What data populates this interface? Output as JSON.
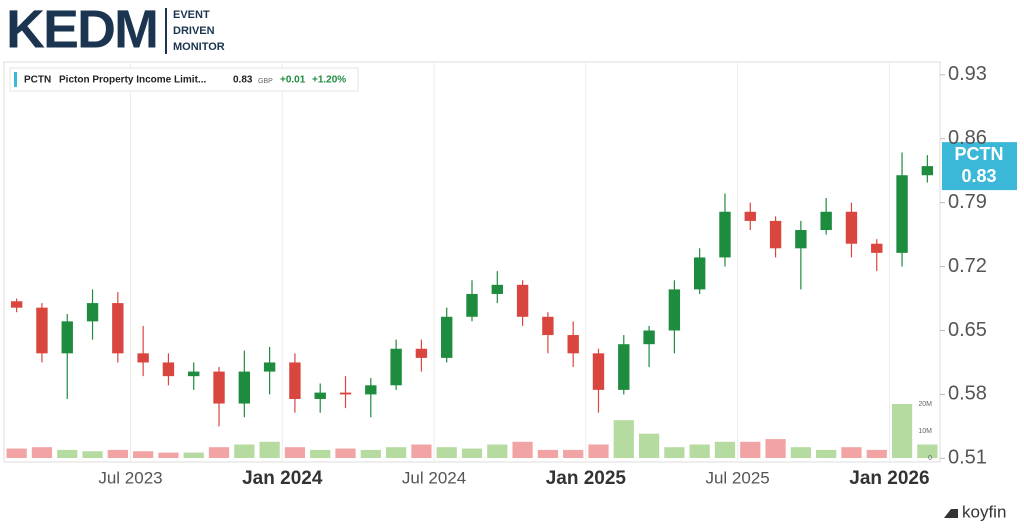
{
  "header": {
    "logo": "KEDM",
    "tagline": [
      "EVENT",
      "DRIVEN",
      "MONITOR"
    ]
  },
  "footer": {
    "brand": "koyfin"
  },
  "chart_data": {
    "type": "candlestick",
    "ticker": "PCTN",
    "name": "Picton Property Income Limit...",
    "price": 0.83,
    "currency": "GBP",
    "change": "+0.01",
    "change_pct": "+1.20%",
    "x": [
      "2023-02",
      "2023-03",
      "2023-04",
      "2023-05",
      "2023-06",
      "2023-07",
      "2023-08",
      "2023-09",
      "2023-10",
      "2023-11",
      "2023-12",
      "2024-01",
      "2024-02",
      "2024-03",
      "2024-04",
      "2024-05",
      "2024-06",
      "2024-07",
      "2024-08",
      "2024-09",
      "2024-10",
      "2024-11",
      "2024-12",
      "2025-01",
      "2025-02",
      "2025-03",
      "2025-04",
      "2025-05",
      "2025-06",
      "2025-07",
      "2025-08",
      "2025-09",
      "2025-10",
      "2025-11",
      "2025-12",
      "2026-01",
      "2026-02"
    ],
    "open": [
      0.682,
      0.675,
      0.625,
      0.66,
      0.68,
      0.625,
      0.615,
      0.6,
      0.605,
      0.57,
      0.605,
      0.615,
      0.575,
      0.582,
      0.58,
      0.59,
      0.63,
      0.62,
      0.665,
      0.69,
      0.7,
      0.665,
      0.645,
      0.625,
      0.585,
      0.635,
      0.65,
      0.695,
      0.73,
      0.78,
      0.77,
      0.74,
      0.76,
      0.78,
      0.745,
      0.735,
      0.82
    ],
    "high": [
      0.685,
      0.68,
      0.668,
      0.695,
      0.692,
      0.655,
      0.625,
      0.615,
      0.61,
      0.628,
      0.632,
      0.625,
      0.592,
      0.6,
      0.598,
      0.64,
      0.64,
      0.675,
      0.705,
      0.715,
      0.705,
      0.67,
      0.66,
      0.63,
      0.645,
      0.655,
      0.705,
      0.74,
      0.8,
      0.79,
      0.775,
      0.77,
      0.795,
      0.79,
      0.75,
      0.845,
      0.842
    ],
    "low": [
      0.67,
      0.615,
      0.575,
      0.64,
      0.615,
      0.6,
      0.59,
      0.585,
      0.545,
      0.555,
      0.58,
      0.56,
      0.56,
      0.565,
      0.555,
      0.585,
      0.605,
      0.615,
      0.66,
      0.68,
      0.655,
      0.625,
      0.61,
      0.56,
      0.58,
      0.61,
      0.625,
      0.69,
      0.72,
      0.76,
      0.73,
      0.695,
      0.755,
      0.73,
      0.715,
      0.72,
      0.812
    ],
    "close": [
      0.675,
      0.625,
      0.66,
      0.68,
      0.625,
      0.615,
      0.6,
      0.605,
      0.57,
      0.605,
      0.615,
      0.575,
      0.582,
      0.58,
      0.59,
      0.63,
      0.62,
      0.665,
      0.69,
      0.7,
      0.665,
      0.645,
      0.625,
      0.585,
      0.635,
      0.65,
      0.695,
      0.73,
      0.78,
      0.77,
      0.74,
      0.76,
      0.78,
      0.745,
      0.735,
      0.82,
      0.83
    ],
    "volume": [
      3500000,
      4000000,
      3000000,
      2500000,
      3000000,
      2500000,
      2000000,
      2000000,
      4000000,
      5000000,
      6000000,
      4000000,
      3000000,
      3500000,
      3000000,
      4000000,
      5000000,
      4000000,
      3500000,
      5000000,
      6000000,
      3000000,
      3000000,
      5000000,
      14000000,
      9000000,
      4000000,
      5000000,
      6000000,
      6000000,
      7000000,
      4000000,
      3000000,
      4000000,
      3000000,
      20000000,
      5000000
    ],
    "up_color": "#1e8c3e",
    "down_color": "#d9463f",
    "up_volume_color": "#b5dba0",
    "down_volume_color": "#f2a3a3",
    "tag_color": "#3bb8d8",
    "xlim": [
      "2023-02",
      "2026-03"
    ],
    "xticks": [
      {
        "value": "2023-07",
        "label": "Jul 2023"
      },
      {
        "value": "2024-01",
        "label": "Jan 2024"
      },
      {
        "value": "2024-07",
        "label": "Jul 2024"
      },
      {
        "value": "2025-01",
        "label": "Jan 2025"
      },
      {
        "value": "2025-07",
        "label": "Jul 2025"
      },
      {
        "value": "2026-01",
        "label": "Jan 2026"
      }
    ],
    "ylim": [
      0.506,
      0.944
    ],
    "yticks": [
      0.51,
      0.58,
      0.65,
      0.72,
      0.79,
      0.86,
      0.93
    ],
    "vlim": [
      0,
      25000000
    ],
    "vticks": [
      0,
      {
        "value": 10000000,
        "label": "10M"
      },
      {
        "value": 20000000,
        "label": "20M"
      }
    ],
    "grid": "x"
  }
}
